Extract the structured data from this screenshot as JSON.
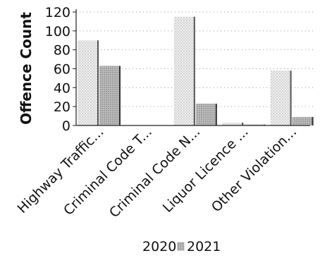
{
  "chart_data": {
    "type": "bar",
    "title": "",
    "xlabel": "",
    "ylabel": "Offence Count",
    "categories": [
      "Highway Traffic...",
      "Criminal Code T...",
      "Criminal Code N...",
      "Liquor Licence ...",
      "Other Violation..."
    ],
    "series": [
      {
        "name": "2020",
        "values": [
          90,
          0,
          115,
          3,
          58
        ],
        "color": "#d9d9d9"
      },
      {
        "name": "2021",
        "values": [
          63,
          0,
          23,
          1,
          9
        ],
        "color": "#b0b0b0"
      }
    ],
    "yticks": [
      "0",
      "20",
      "40",
      "60",
      "80",
      "100",
      "120"
    ],
    "ylim": [
      0,
      120
    ],
    "grid": true,
    "legend": "bottom"
  }
}
